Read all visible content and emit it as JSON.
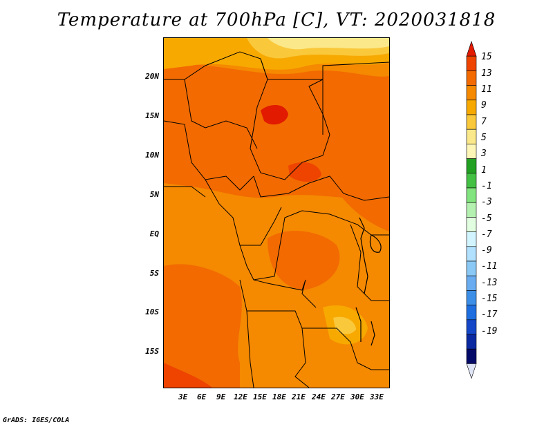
{
  "title": "Temperature at 700hPa [C], VT: 2020031818",
  "footer": "GrADS: IGES/COLA",
  "map": {
    "lat_labels": [
      "20N",
      "15N",
      "10N",
      "5N",
      "EQ",
      "5S",
      "10S",
      "15S"
    ],
    "lon_labels": [
      "3E",
      "6E",
      "9E",
      "12E",
      "15E",
      "18E",
      "21E",
      "24E",
      "27E",
      "30E",
      "33E"
    ]
  },
  "colorbar": {
    "labels": [
      "15",
      "13",
      "11",
      "9",
      "7",
      "5",
      "3",
      "1",
      "-1",
      "-3",
      "-5",
      "-7",
      "-9",
      "-11",
      "-13",
      "-15",
      "-17",
      "-19"
    ],
    "colors": [
      "#e11a00",
      "#ee4400",
      "#f26a00",
      "#f58900",
      "#f7a900",
      "#fac83b",
      "#fbe88a",
      "#fdf6b7",
      "#22a022",
      "#44c044",
      "#82e47e",
      "#b4f0b0",
      "#e2fee0",
      "#d2f4ff",
      "#b2e0ff",
      "#8ac8f6",
      "#6aacf0",
      "#3c8ee6",
      "#1e6ee0",
      "#1446c8",
      "#0a28a0",
      "#040a68",
      "#dfe4f6"
    ]
  }
}
